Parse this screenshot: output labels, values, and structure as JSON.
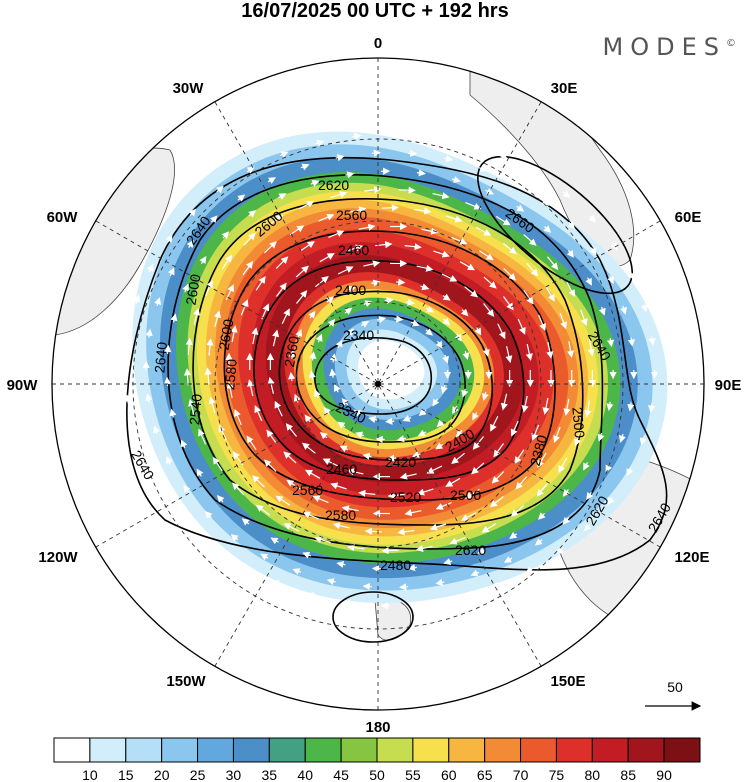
{
  "title": "16/07/2025  00 UTC  + 192 hrs",
  "brand": "MODES",
  "brand_mark": "©",
  "projection": "polar stereographic, south pole centered",
  "longitude_labels": {
    "top": "0",
    "top_left": "30W",
    "top_right": "30E",
    "upper_left": "60W",
    "upper_right": "60E",
    "left": "90W",
    "right": "90E",
    "lower_left": "120W",
    "lower_right": "120E",
    "bottom_left": "150W",
    "bottom_right": "150E",
    "bottom": "180"
  },
  "contour_labels": [
    "2340",
    "2340",
    "2360",
    "2380",
    "2400",
    "2400",
    "2420",
    "2460",
    "2460",
    "2480",
    "2500",
    "2500",
    "2520",
    "2540",
    "2560",
    "2560",
    "2580",
    "2580",
    "2600",
    "2600",
    "2600",
    "2620",
    "2620",
    "2620",
    "2640",
    "2640",
    "2640",
    "2640",
    "2660"
  ],
  "vector_reference": {
    "label": "50"
  },
  "colorbar": {
    "labels": [
      "10",
      "15",
      "20",
      "25",
      "30",
      "35",
      "40",
      "45",
      "50",
      "55",
      "60",
      "65",
      "70",
      "75",
      "80",
      "85",
      "90"
    ],
    "colors": [
      "#ffffff",
      "#d3eefb",
      "#b4dff6",
      "#8ac6ed",
      "#62a8df",
      "#4c8ec7",
      "#43a083",
      "#4cb748",
      "#85c542",
      "#c6dd4f",
      "#f6e04d",
      "#f7b640",
      "#f38a35",
      "#ea5a2c",
      "#dd302b",
      "#c21d25",
      "#a1151c",
      "#7c1014"
    ],
    "level_colors": {
      "10": "#d3eefb",
      "20": "#8ac6ed",
      "30": "#4c8ec7",
      "40": "#4cb748",
      "50": "#c6dd4f",
      "55": "#f6e04d",
      "60": "#f7b640",
      "65": "#f38a35",
      "70": "#ea5a2c",
      "75": "#dd302b",
      "80": "#c21d25",
      "85": "#a1151c"
    }
  }
}
